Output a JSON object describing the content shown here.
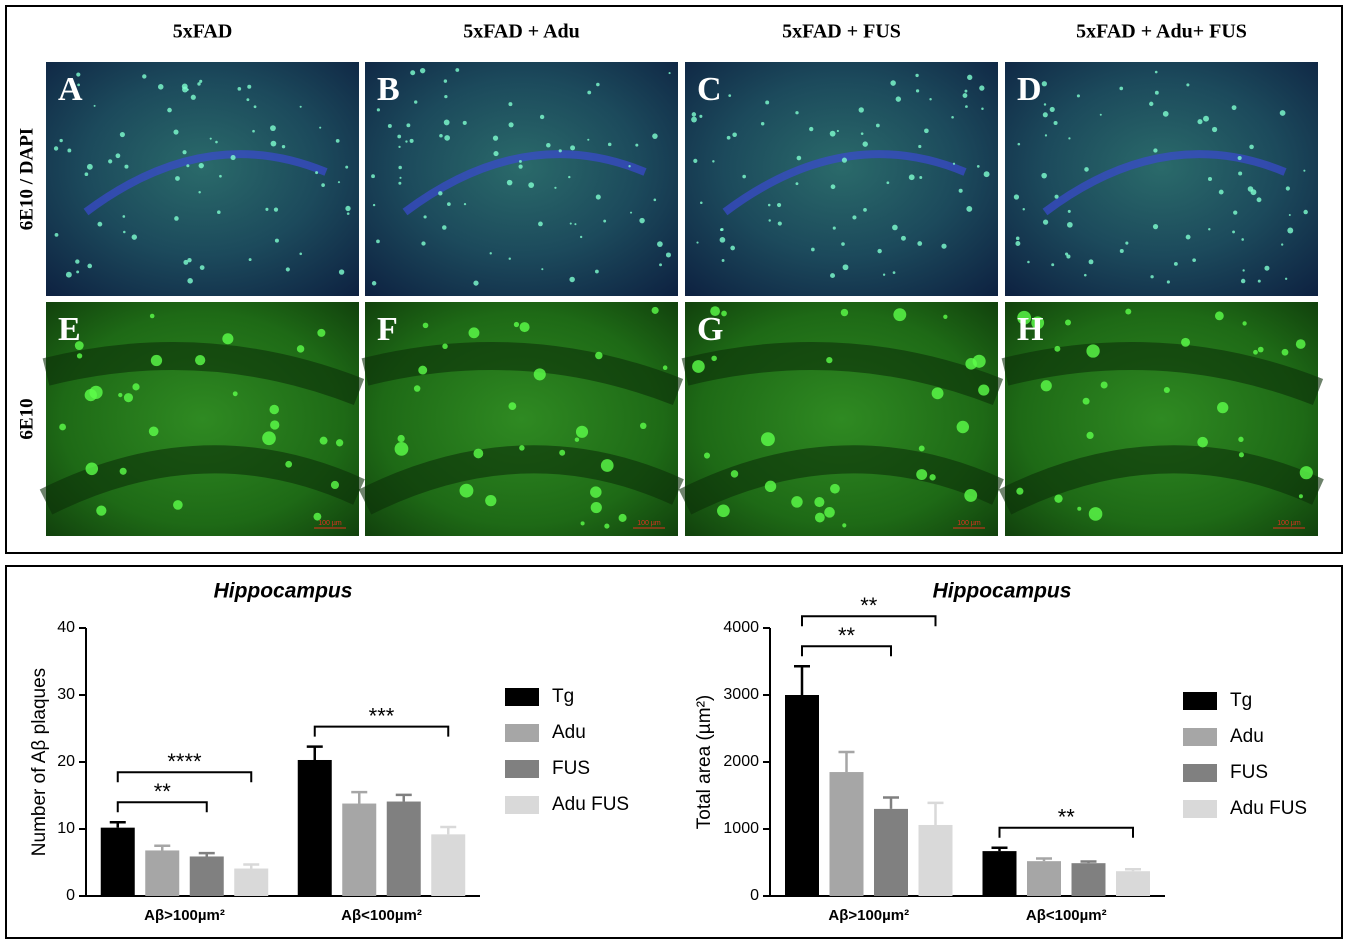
{
  "figure": {
    "columns": [
      "5xFAD",
      "5xFAD + Adu",
      "5xFAD + FUS",
      "5xFAD + Adu+ FUS"
    ],
    "rows": [
      "6E10 / DAPI",
      "6E10"
    ],
    "panel_letters": [
      "A",
      "B",
      "C",
      "D",
      "E",
      "F",
      "G",
      "H"
    ],
    "scale_bar": "100 µm"
  },
  "chart_data": [
    {
      "type": "bar",
      "title": "Hippocampus",
      "y_label": "Number of Aβ plaques",
      "categories": [
        "Aβ>100µm²",
        "Aβ<100µm²"
      ],
      "series": [
        {
          "name": "Tg",
          "color": "#000000",
          "values": [
            10.2,
            20.3
          ],
          "errors": [
            0.8,
            2.0
          ]
        },
        {
          "name": "Adu",
          "color": "#a6a6a6",
          "values": [
            6.8,
            13.8
          ],
          "errors": [
            0.7,
            1.7
          ]
        },
        {
          "name": "FUS",
          "color": "#808080",
          "values": [
            5.9,
            14.1
          ],
          "errors": [
            0.5,
            1.0
          ]
        },
        {
          "name": "Adu FUS",
          "color": "#d9d9d9",
          "values": [
            4.1,
            9.2
          ],
          "errors": [
            0.6,
            1.1
          ]
        }
      ],
      "ylim": [
        0,
        40
      ],
      "yticks": [
        0,
        10,
        20,
        30,
        40
      ],
      "annotations": [
        {
          "text": "**",
          "category": 0,
          "series": [
            0,
            2
          ]
        },
        {
          "text": "****",
          "category": 0,
          "series": [
            0,
            3
          ]
        },
        {
          "text": "***",
          "category": 1,
          "series": [
            0,
            3
          ]
        }
      ]
    },
    {
      "type": "bar",
      "title": "Hippocampus",
      "y_label": "Total area (µm²)",
      "categories": [
        "Aβ>100µm²",
        "Aβ<100µm²"
      ],
      "series": [
        {
          "name": "Tg",
          "color": "#000000",
          "values": [
            3000,
            670
          ],
          "errors": [
            430,
            50
          ]
        },
        {
          "name": "Adu",
          "color": "#a6a6a6",
          "values": [
            1850,
            520
          ],
          "errors": [
            300,
            40
          ]
        },
        {
          "name": "FUS",
          "color": "#808080",
          "values": [
            1300,
            490
          ],
          "errors": [
            170,
            25
          ]
        },
        {
          "name": "Adu FUS",
          "color": "#d9d9d9",
          "values": [
            1060,
            370
          ],
          "errors": [
            330,
            30
          ]
        }
      ],
      "ylim": [
        0,
        4000
      ],
      "yticks": [
        0,
        1000,
        2000,
        3000,
        4000
      ],
      "annotations": [
        {
          "text": "**",
          "category": 0,
          "series": [
            0,
            2
          ]
        },
        {
          "text": "**",
          "category": 0,
          "series": [
            0,
            3
          ]
        },
        {
          "text": "**",
          "category": 1,
          "series": [
            0,
            3
          ]
        }
      ]
    }
  ]
}
